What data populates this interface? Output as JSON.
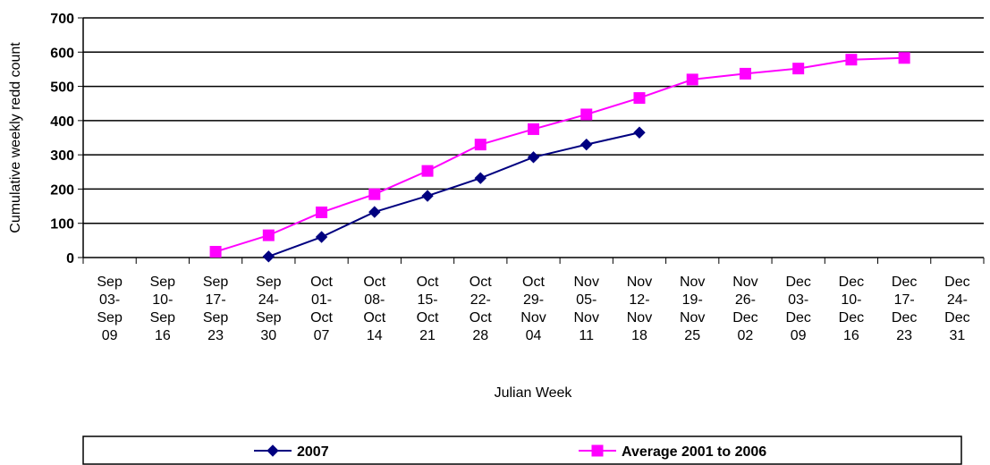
{
  "chart_data": {
    "type": "line",
    "x_label": "Julian Week",
    "y_label": "Cumulative weekly redd count",
    "categories": [
      "Sep 03-Sep 09",
      "Sep 10-Sep 16",
      "Sep 17-Sep 23",
      "Sep 24-Sep 30",
      "Oct 01-Oct 07",
      "Oct 08-Oct 14",
      "Oct 15-Oct 21",
      "Oct 22-Oct 28",
      "Oct 29-Nov 04",
      "Nov 05-Nov 11",
      "Nov 12-Nov 18",
      "Nov 19-Nov 25",
      "Nov 26-Dec 02",
      "Dec 03-Dec 09",
      "Dec 10-Dec 16",
      "Dec 17-Dec 23",
      "Dec 24-Dec 31"
    ],
    "series": [
      {
        "name": "2007",
        "color": "#000080",
        "marker": "diamond",
        "values": [
          null,
          null,
          null,
          3,
          60,
          133,
          180,
          232,
          293,
          330,
          365,
          null,
          null,
          null,
          null,
          null,
          null
        ]
      },
      {
        "name": "Average 2001 to 2006",
        "color": "#ff00ff",
        "marker": "square",
        "values": [
          null,
          null,
          17,
          65,
          132,
          185,
          253,
          330,
          375,
          418,
          466,
          520,
          537,
          552,
          578,
          583,
          null
        ]
      }
    ],
    "ylim": [
      0,
      700
    ],
    "yticks": [
      0,
      100,
      200,
      300,
      400,
      500,
      600,
      700
    ],
    "grid": true,
    "legend": "bottom"
  }
}
